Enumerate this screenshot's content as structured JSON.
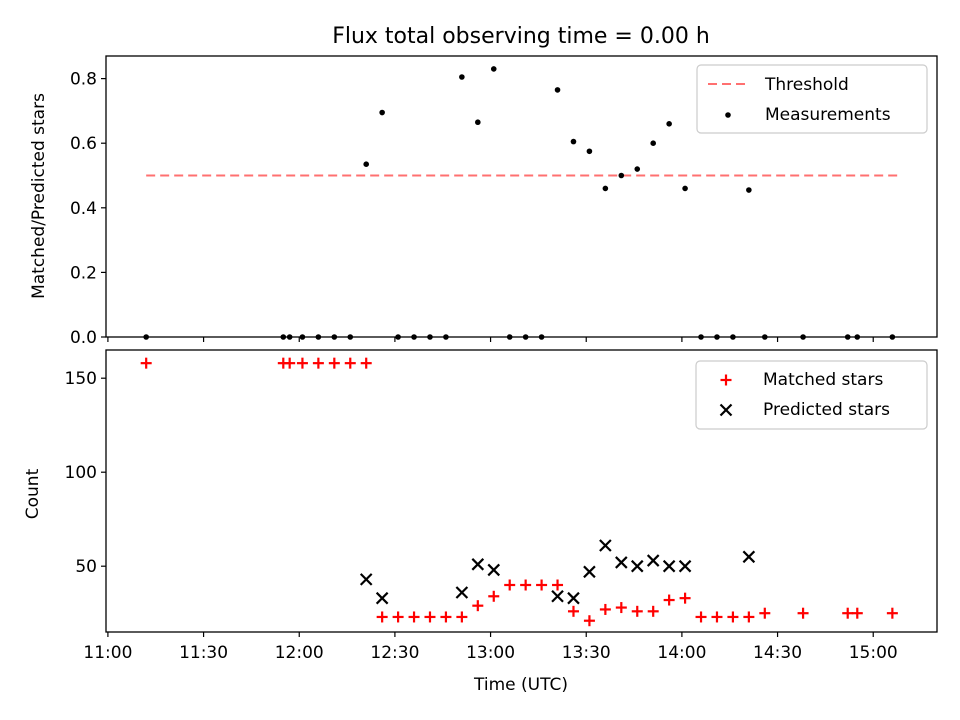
{
  "title": "Flux total observing time = 0.00 h",
  "xlabel": "Time (UTC)",
  "x_ticks": [
    "11:00",
    "11:30",
    "12:00",
    "12:30",
    "13:00",
    "13:30",
    "14:00",
    "14:30",
    "15:00"
  ],
  "colors": {
    "threshold": "#ff7070",
    "measurements": "#000000",
    "matched": "#ff0000",
    "predicted": "#000000"
  },
  "chart_data": [
    {
      "type": "scatter",
      "ylabel": "Matched/Predicted stars",
      "xlim": [
        "11:00",
        "15:20"
      ],
      "ylim": [
        0,
        0.87
      ],
      "y_ticks": [
        "0.0",
        "0.2",
        "0.4",
        "0.6",
        "0.8"
      ],
      "legend_position": "top-right",
      "threshold": {
        "name": "Threshold",
        "value": 0.5,
        "x_range": [
          "11:12",
          "15:08"
        ]
      },
      "series": [
        {
          "name": "Measurements",
          "x": [
            "11:12",
            "11:55",
            "11:57",
            "12:01",
            "12:06",
            "12:11",
            "12:16",
            "12:21",
            "12:26",
            "12:31",
            "12:36",
            "12:41",
            "12:46",
            "12:51",
            "12:56",
            "13:01",
            "13:06",
            "13:11",
            "13:16",
            "13:21",
            "13:26",
            "13:31",
            "13:36",
            "13:41",
            "13:46",
            "13:51",
            "13:56",
            "14:01",
            "14:06",
            "14:11",
            "14:16",
            "14:21",
            "14:26",
            "14:38",
            "14:52",
            "14:55",
            "15:06"
          ],
          "y": [
            0,
            0,
            0,
            0,
            0,
            0,
            0,
            0.535,
            0.695,
            0,
            0,
            0,
            0,
            0.805,
            0.665,
            0.83,
            0,
            0,
            0,
            0.765,
            0.605,
            0.575,
            0.46,
            0.5,
            0.52,
            0.6,
            0.66,
            0.46,
            0,
            0,
            0,
            0.455,
            0,
            0,
            0,
            0,
            0
          ]
        }
      ]
    },
    {
      "type": "scatter",
      "ylabel": "Count",
      "xlim": [
        "11:00",
        "15:20"
      ],
      "ylim": [
        15,
        165
      ],
      "y_ticks": [
        "50",
        "100",
        "150"
      ],
      "legend_position": "top-right",
      "series": [
        {
          "name": "Matched stars",
          "x": [
            "11:12",
            "11:55",
            "11:57",
            "12:01",
            "12:06",
            "12:11",
            "12:16",
            "12:21",
            "12:26",
            "12:31",
            "12:36",
            "12:41",
            "12:46",
            "12:51",
            "12:56",
            "13:01",
            "13:06",
            "13:11",
            "13:16",
            "13:21",
            "13:26",
            "13:31",
            "13:36",
            "13:41",
            "13:46",
            "13:51",
            "13:56",
            "14:01",
            "14:06",
            "14:11",
            "14:16",
            "14:21",
            "14:26",
            "14:38",
            "14:52",
            "14:55",
            "15:06"
          ],
          "y": [
            158,
            158,
            158,
            158,
            158,
            158,
            158,
            158,
            23,
            23,
            23,
            23,
            23,
            23,
            29,
            34,
            40,
            40,
            40,
            40,
            26,
            21,
            27,
            28,
            26,
            26,
            32,
            33,
            23,
            23,
            23,
            23,
            25,
            25,
            25,
            25,
            25
          ]
        },
        {
          "name": "Predicted stars",
          "x": [
            "12:21",
            "12:26",
            "12:51",
            "12:56",
            "13:01",
            "13:21",
            "13:26",
            "13:31",
            "13:36",
            "13:41",
            "13:46",
            "13:51",
            "13:56",
            "14:01",
            "14:21"
          ],
          "y": [
            43,
            33,
            36,
            51,
            48,
            34,
            33,
            47,
            61,
            52,
            50,
            53,
            50,
            50,
            55
          ]
        }
      ]
    }
  ]
}
